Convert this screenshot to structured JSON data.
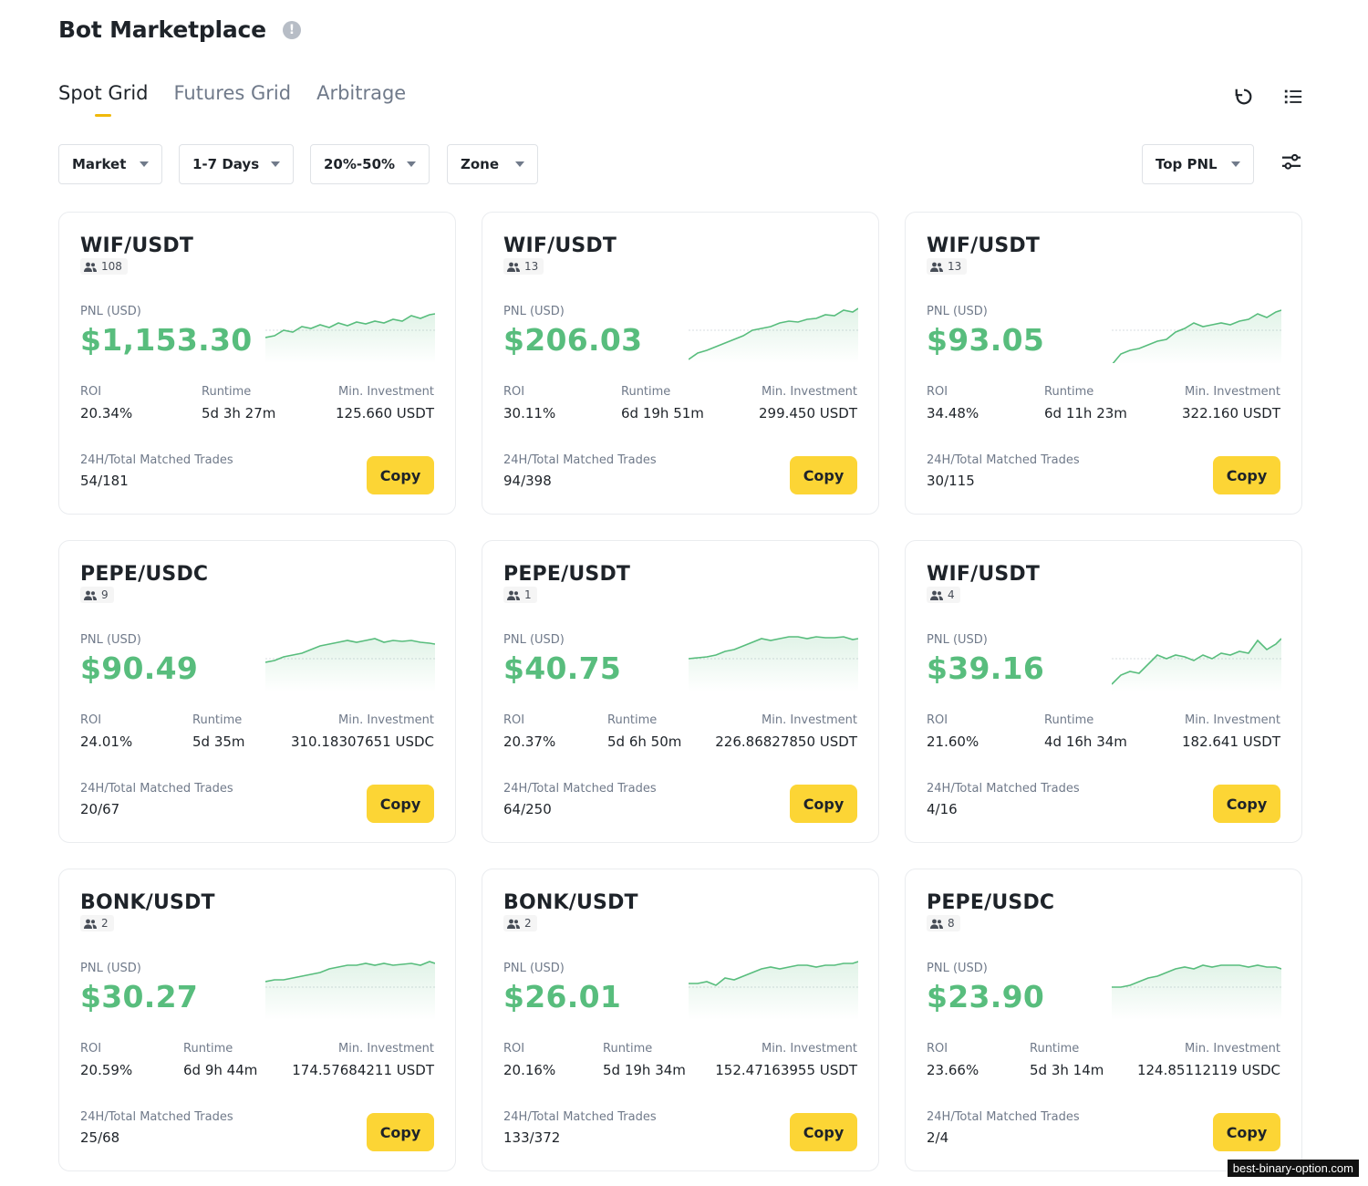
{
  "header": {
    "title": "Bot Marketplace",
    "info_icon": "info-icon",
    "tabs": [
      {
        "label": "Spot Grid",
        "active": true
      },
      {
        "label": "Futures Grid",
        "active": false
      },
      {
        "label": "Arbitrage",
        "active": false
      }
    ],
    "icons": [
      "refresh-icon",
      "list-view-icon"
    ]
  },
  "filters": {
    "market": "Market",
    "days": "1-7 Days",
    "roi_range": "20%-50%",
    "zone": "Zone",
    "sort": "Top PNL",
    "settings_icon": "filter-settings-icon"
  },
  "labels": {
    "pnl": "PNL (USD)",
    "roi": "ROI",
    "runtime": "Runtime",
    "min_investment": "Min. Investment",
    "trades": "24H/Total Matched Trades",
    "copy": "Copy"
  },
  "colors": {
    "accent": "#fcd535",
    "positive": "#58bd7d",
    "negative": "#f6465d"
  },
  "cards": [
    {
      "pair": "WIF/USDT",
      "users": "108",
      "pnl": "$1,153.30",
      "roi": "20.34%",
      "runtime": "5d 3h 27m",
      "min_investment": "125.660 USDT",
      "trades": "54/181"
    },
    {
      "pair": "WIF/USDT",
      "users": "13",
      "pnl": "$206.03",
      "roi": "30.11%",
      "runtime": "6d 19h 51m",
      "min_investment": "299.450 USDT",
      "trades": "94/398"
    },
    {
      "pair": "WIF/USDT",
      "users": "13",
      "pnl": "$93.05",
      "roi": "34.48%",
      "runtime": "6d 11h 23m",
      "min_investment": "322.160 USDT",
      "trades": "30/115"
    },
    {
      "pair": "PEPE/USDC",
      "users": "9",
      "pnl": "$90.49",
      "roi": "24.01%",
      "runtime": "5d 35m",
      "min_investment": "310.18307651 USDC",
      "trades": "20/67"
    },
    {
      "pair": "PEPE/USDT",
      "users": "1",
      "pnl": "$40.75",
      "roi": "20.37%",
      "runtime": "5d 6h 50m",
      "min_investment": "226.86827850 USDT",
      "trades": "64/250"
    },
    {
      "pair": "WIF/USDT",
      "users": "4",
      "pnl": "$39.16",
      "roi": "21.60%",
      "runtime": "4d 16h 34m",
      "min_investment": "182.641 USDT",
      "trades": "4/16"
    },
    {
      "pair": "BONK/USDT",
      "users": "2",
      "pnl": "$30.27",
      "roi": "20.59%",
      "runtime": "6d 9h 44m",
      "min_investment": "174.57684211 USDT",
      "trades": "25/68"
    },
    {
      "pair": "BONK/USDT",
      "users": "2",
      "pnl": "$26.01",
      "roi": "20.16%",
      "runtime": "5d 19h 34m",
      "min_investment": "152.47163955 USDT",
      "trades": "133/372"
    },
    {
      "pair": "PEPE/USDC",
      "users": "8",
      "pnl": "$23.90",
      "roi": "23.66%",
      "runtime": "5d 3h 14m",
      "min_investment": "124.85112119 USDC",
      "trades": "2/4"
    }
  ],
  "watermark": "best-binary-option.com"
}
